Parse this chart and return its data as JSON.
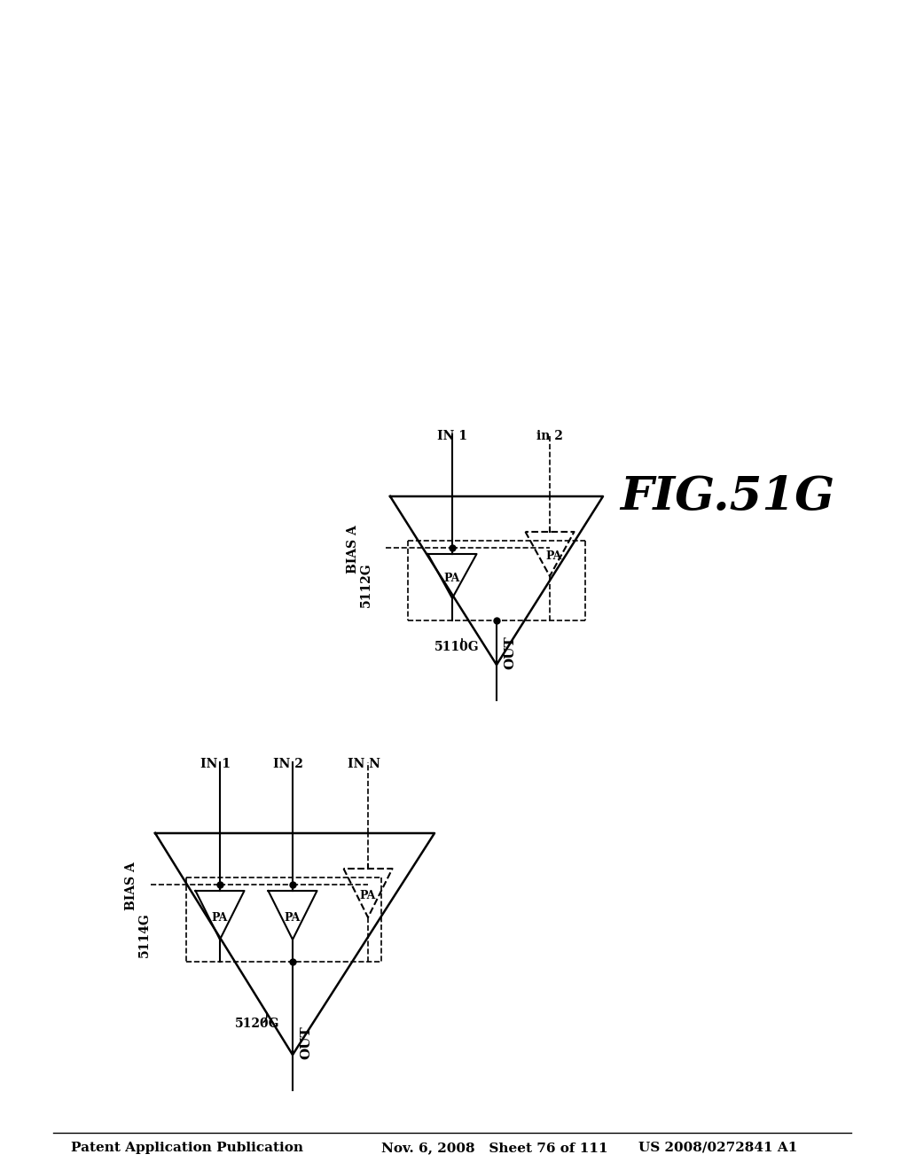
{
  "header_left": "Patent Application Publication",
  "header_mid": "Nov. 6, 2008   Sheet 76 of 111",
  "header_right": "US 2008/0272841 A1",
  "fig_label": "FIG.51G",
  "bg_color": "#ffffff",
  "text_color": "#000000"
}
